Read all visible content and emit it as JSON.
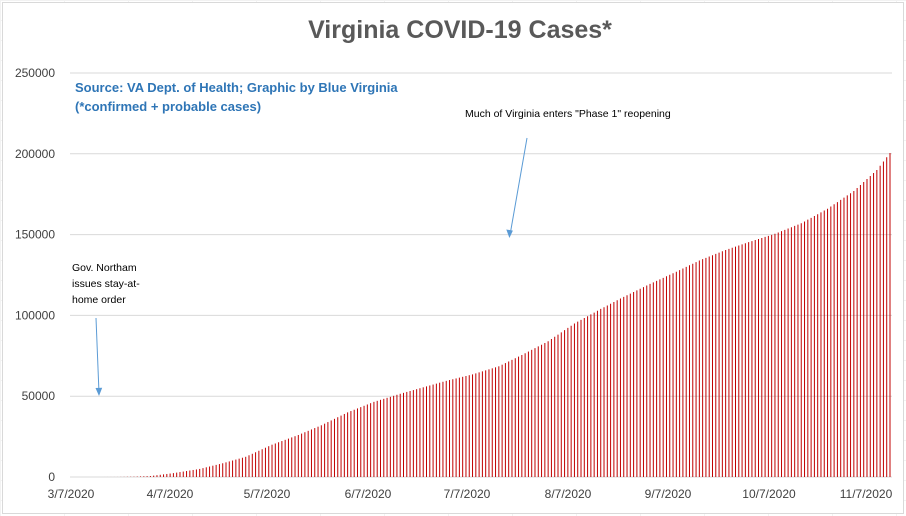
{
  "chart_data": {
    "type": "bar",
    "title": "Virginia COVID-19 Cases*",
    "source_line1": "Source: VA Dept. of Health; Graphic by Blue Virginia",
    "source_line2": "(*confirmed + probable cases)",
    "xlabel": "",
    "ylabel": "",
    "ylim": [
      0,
      250000
    ],
    "yticks": [
      "0",
      "50000",
      "100000",
      "150000",
      "200000",
      "250000"
    ],
    "xticks": [
      "3/7/2020",
      "4/7/2020",
      "5/7/2020",
      "6/7/2020",
      "7/7/2020",
      "8/7/2020",
      "9/7/2020",
      "10/7/2020",
      "11/7/2020"
    ],
    "bar_color": "#c00000",
    "grid": true,
    "legend": "none",
    "annotations": {
      "stay_at_home": [
        "Gov. Northam",
        "issues stay-at-",
        "home order"
      ],
      "phase1": "Much of Virginia enters \"Phase 1\" reopening"
    },
    "start_date": "3/7/2020",
    "num_days": 250,
    "key_values": [
      {
        "day": 0,
        "value": 0
      },
      {
        "day": 9,
        "value": 5
      },
      {
        "day": 14,
        "value": 30
      },
      {
        "day": 19,
        "value": 200
      },
      {
        "day": 24,
        "value": 600
      },
      {
        "day": 31,
        "value": 2400
      },
      {
        "day": 39,
        "value": 5000
      },
      {
        "day": 46,
        "value": 8500
      },
      {
        "day": 53,
        "value": 12500
      },
      {
        "day": 61,
        "value": 20000
      },
      {
        "day": 69,
        "value": 26000
      },
      {
        "day": 76,
        "value": 32000
      },
      {
        "day": 84,
        "value": 40000
      },
      {
        "day": 92,
        "value": 46500
      },
      {
        "day": 100,
        "value": 51500
      },
      {
        "day": 107,
        "value": 55500
      },
      {
        "day": 114,
        "value": 59500
      },
      {
        "day": 122,
        "value": 63500
      },
      {
        "day": 130,
        "value": 68500
      },
      {
        "day": 137,
        "value": 75500
      },
      {
        "day": 145,
        "value": 84000
      },
      {
        "day": 153,
        "value": 95000
      },
      {
        "day": 161,
        "value": 104000
      },
      {
        "day": 168,
        "value": 111500
      },
      {
        "day": 176,
        "value": 119500
      },
      {
        "day": 184,
        "value": 127000
      },
      {
        "day": 191,
        "value": 134000
      },
      {
        "day": 199,
        "value": 140500
      },
      {
        "day": 207,
        "value": 146000
      },
      {
        "day": 214,
        "value": 150500
      },
      {
        "day": 222,
        "value": 157000
      },
      {
        "day": 230,
        "value": 166000
      },
      {
        "day": 238,
        "value": 177000
      },
      {
        "day": 245,
        "value": 190000
      },
      {
        "day": 249,
        "value": 200500
      }
    ]
  }
}
